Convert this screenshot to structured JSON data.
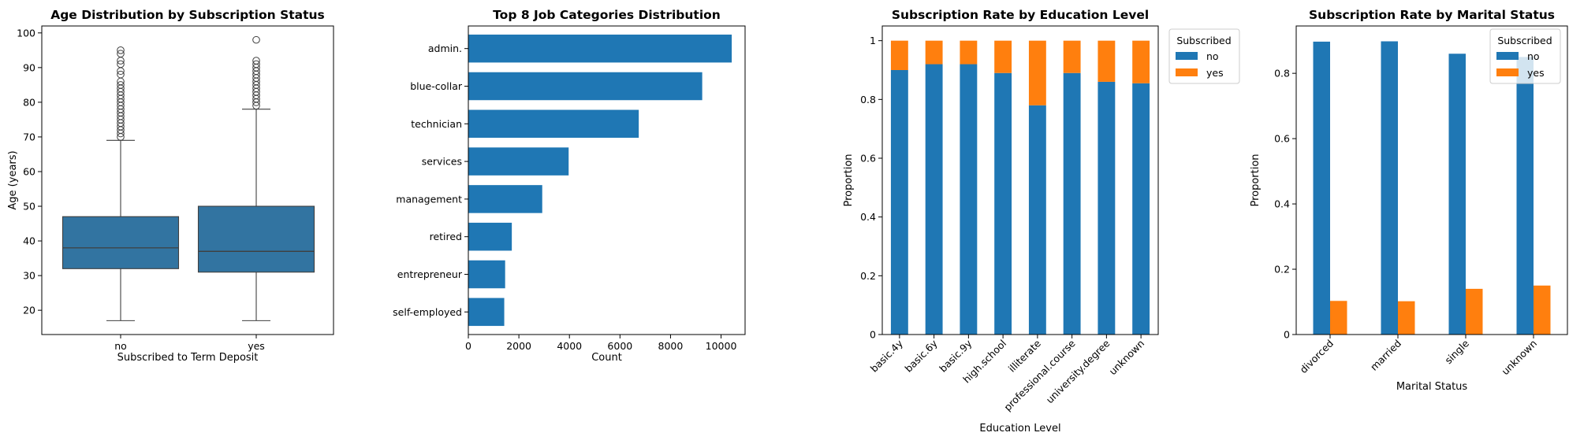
{
  "colors": {
    "blue": "#1f77b4",
    "orange": "#ff7f0e",
    "box": "#3274a1",
    "spine": "#000000"
  },
  "chart_data": [
    {
      "type": "box",
      "title": "Age Distribution by Subscription Status",
      "xlabel": "Subscribed to Term Deposit",
      "ylabel": "Age (years)",
      "ylim": [
        13,
        102
      ],
      "yticks": [
        20,
        30,
        40,
        50,
        60,
        70,
        80,
        90,
        100
      ],
      "categories": [
        "no",
        "yes"
      ],
      "boxes": [
        {
          "name": "no",
          "whislo": 17,
          "q1": 32,
          "med": 38,
          "q3": 47,
          "whishi": 69,
          "fliers": [
            70,
            71,
            72,
            73,
            74,
            75,
            76,
            77,
            78,
            79,
            80,
            81,
            82,
            83,
            84,
            85,
            86,
            88,
            89,
            91,
            92,
            94,
            95
          ]
        },
        {
          "name": "yes",
          "whislo": 17,
          "q1": 31,
          "med": 37,
          "q3": 50,
          "whishi": 78,
          "fliers": [
            79,
            80,
            81,
            82,
            83,
            84,
            85,
            86,
            87,
            88,
            89,
            90,
            91,
            92,
            98
          ]
        }
      ]
    },
    {
      "type": "bar",
      "orientation": "horizontal",
      "title": "Top 8 Job Categories Distribution",
      "xlabel": "Count",
      "ylabel": "",
      "xlim": [
        0,
        10950
      ],
      "xticks": [
        0,
        2000,
        4000,
        6000,
        8000,
        10000
      ],
      "categories": [
        "admin.",
        "blue-collar",
        "technician",
        "services",
        "management",
        "retired",
        "entrepreneur",
        "self-employed"
      ],
      "values": [
        10422,
        9254,
        6743,
        3969,
        2924,
        1720,
        1456,
        1421
      ]
    },
    {
      "type": "bar",
      "stacked": true,
      "title": "Subscription Rate by Education Level",
      "xlabel": "Education Level",
      "ylabel": "Proportion",
      "ylim": [
        0,
        1.05
      ],
      "yticks": [
        0.0,
        0.2,
        0.4,
        0.6,
        0.8,
        1.0
      ],
      "legend": {
        "title": "Subscribed",
        "placement": "outside-right"
      },
      "categories": [
        "basic.4y",
        "basic.6y",
        "basic.9y",
        "high.school",
        "illiterate",
        "professional.course",
        "university.degree",
        "unknown"
      ],
      "series": [
        {
          "name": "no",
          "values": [
            0.9,
            0.92,
            0.92,
            0.89,
            0.78,
            0.89,
            0.86,
            0.855
          ]
        },
        {
          "name": "yes",
          "values": [
            0.1,
            0.08,
            0.08,
            0.11,
            0.22,
            0.11,
            0.14,
            0.145
          ]
        }
      ]
    },
    {
      "type": "bar",
      "grouped": true,
      "title": "Subscription Rate by Marital Status",
      "xlabel": "Marital Status",
      "ylabel": "Proportion",
      "ylim": [
        0,
        0.945
      ],
      "yticks": [
        0.0,
        0.2,
        0.4,
        0.6,
        0.8
      ],
      "legend": {
        "title": "Subscribed",
        "placement": "top-right"
      },
      "categories": [
        "divorced",
        "married",
        "single",
        "unknown"
      ],
      "series": [
        {
          "name": "no",
          "values": [
            0.897,
            0.898,
            0.86,
            0.85
          ]
        },
        {
          "name": "yes",
          "values": [
            0.103,
            0.102,
            0.14,
            0.15
          ]
        }
      ]
    }
  ]
}
